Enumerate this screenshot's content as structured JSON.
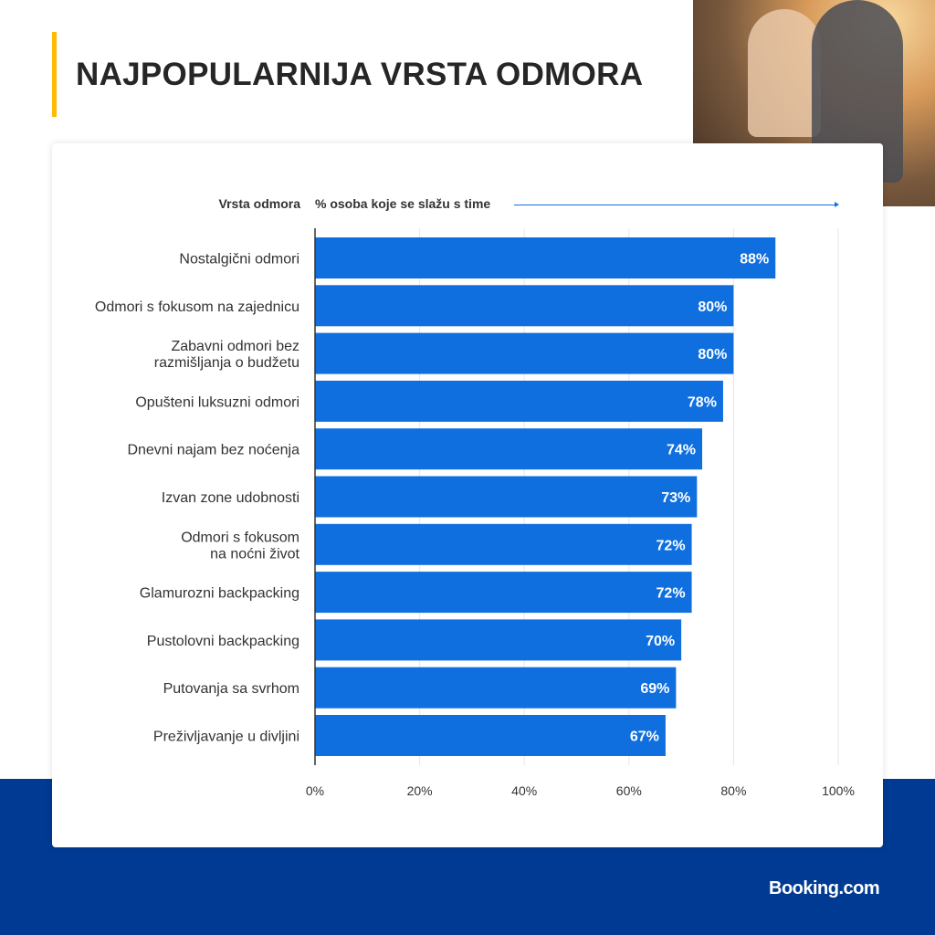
{
  "title": "NAJPOPULARNIJA VRSTA ODMORA",
  "logo": "Booking.com",
  "colors": {
    "bar": "#0f6fdf",
    "background_band": "#003a93",
    "accent": "#febb02"
  },
  "chart_data": {
    "type": "bar",
    "orientation": "horizontal",
    "ylabel": "Vrsta odmora",
    "xlabel": "% osoba koje se slažu s time",
    "xlim": [
      0,
      100
    ],
    "grid": true,
    "xticks": [
      "0%",
      "20%",
      "40%",
      "60%",
      "80%",
      "100%"
    ],
    "categories": [
      "Nostalgični odmori",
      "Odmori s fokusom na zajednicu",
      "Zabavni odmori bez\nrazmišljanja o budžetu",
      "Opušteni luksuzni odmori",
      "Dnevni najam bez noćenja",
      "Izvan zone udobnosti",
      "Odmori s fokusom\nna noćni život",
      "Glamurozni backpacking",
      "Pustolovni backpacking",
      "Putovanja sa svrhom",
      "Preživljavanje u divljini"
    ],
    "values": [
      88,
      80,
      80,
      78,
      74,
      73,
      72,
      72,
      70,
      69,
      67
    ],
    "labels": [
      "88%",
      "80%",
      "80%",
      "78%",
      "74%",
      "73%",
      "72%",
      "72%",
      "70%",
      "69%",
      "67%"
    ]
  }
}
